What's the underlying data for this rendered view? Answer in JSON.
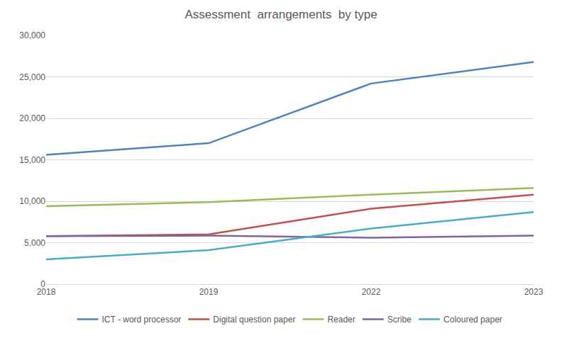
{
  "chart_data": {
    "type": "line",
    "title": "Assessment  arrangements  by type",
    "categories": [
      "2018",
      "2019",
      "2022",
      "2023"
    ],
    "series": [
      {
        "name": "ICT - word processor",
        "color": "#4f81bd",
        "values": [
          15600,
          17000,
          24200,
          26800
        ]
      },
      {
        "name": "Digital question paper",
        "color": "#c0504d",
        "values": [
          5800,
          6000,
          9100,
          10800
        ]
      },
      {
        "name": "Reader",
        "color": "#9bbb59",
        "values": [
          9400,
          9900,
          10800,
          11600
        ]
      },
      {
        "name": "Scribe",
        "color": "#8064a2",
        "values": [
          5800,
          5850,
          5600,
          5850
        ]
      },
      {
        "name": "Coloured paper",
        "color": "#4bacc6",
        "values": [
          3000,
          4100,
          6700,
          8700
        ]
      }
    ],
    "ylim": [
      0,
      30000
    ],
    "yticks": [
      0,
      {
        "value": 5000,
        "label": "5,000"
      },
      {
        "value": 10000,
        "label": "10,000"
      },
      {
        "value": 15000,
        "label": "15,000"
      },
      {
        "value": 20000,
        "label": "20,000"
      },
      {
        "value": 25000,
        "label": "25,000"
      },
      {
        "value": 30000,
        "label": "30,000"
      }
    ],
    "grid": true,
    "legend": "bottom"
  }
}
